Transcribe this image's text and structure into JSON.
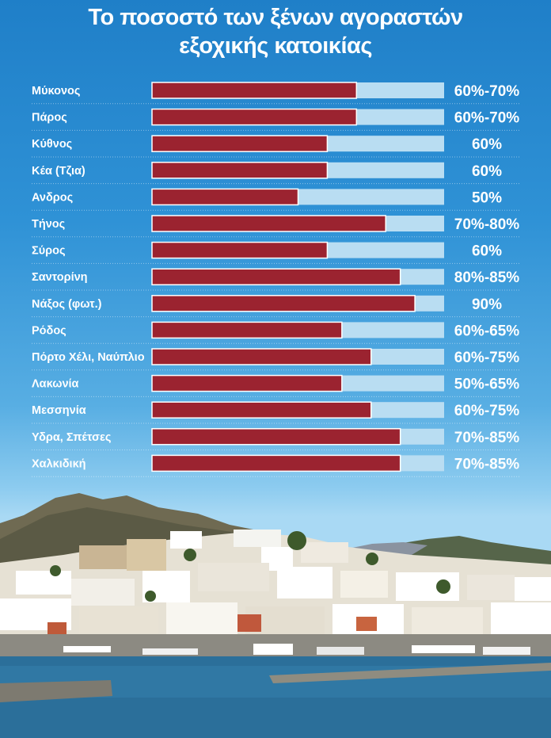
{
  "chart_data": {
    "type": "bar",
    "orientation": "horizontal",
    "title_lines": [
      "Το ποσοστό των ξένων αγοραστών",
      "εξοχικής κατοικίας"
    ],
    "categories": [
      "Μύκονος",
      "Πάρος",
      "Κύθνος",
      "Κέα (Τζια)",
      "Ανδρος",
      "Τήνος",
      "Σύρος",
      "Σαντορίνη",
      "Νάξος (φωτ.)",
      "Ρόδος",
      "Πόρτο Χέλι, Ναύπλιο",
      "Λακωνία",
      "Μεσσηνία",
      "Υδρα, Σπέτσες",
      "Χαλκιδική"
    ],
    "value_labels": [
      "60%-70%",
      "60%-70%",
      "60%",
      "60%",
      "50%",
      "70%-80%",
      "60%",
      "80%-85%",
      "90%",
      "60%-65%",
      "60%-75%",
      "50%-65%",
      "60%-75%",
      "70%-85%",
      "70%-85%"
    ],
    "values": [
      70,
      70,
      60,
      60,
      50,
      80,
      60,
      85,
      90,
      65,
      75,
      65,
      75,
      85,
      85
    ],
    "xlim": [
      0,
      100
    ],
    "bar_color": "#9b2330",
    "track_color": "#b9ddf2",
    "grid": false,
    "legend": "none"
  },
  "colors": {
    "sky_top": "#1f7fc8",
    "sea": "#2b6f9a"
  }
}
